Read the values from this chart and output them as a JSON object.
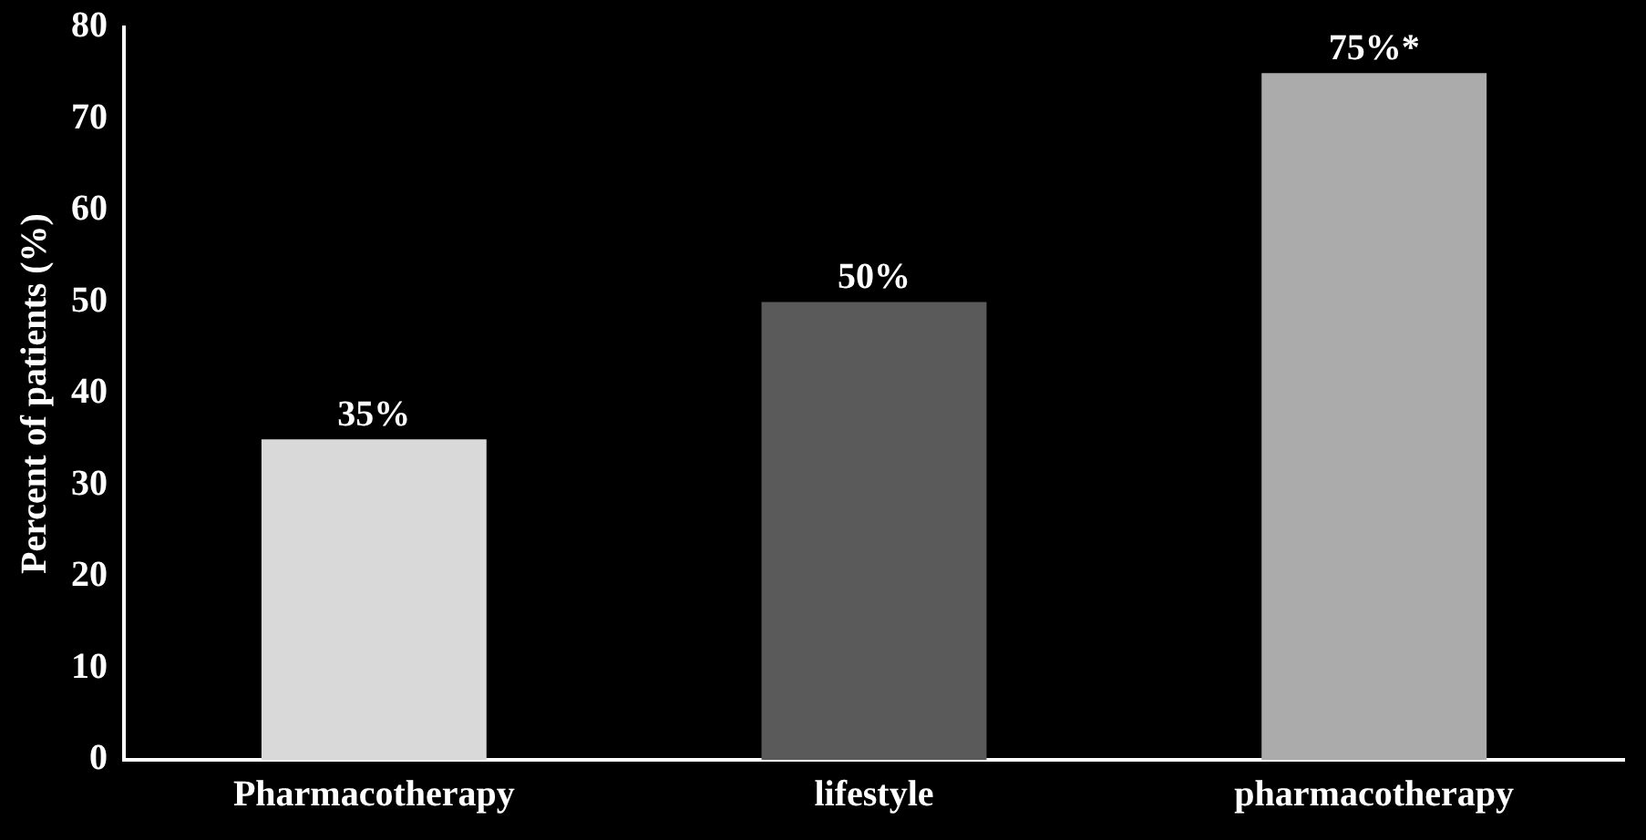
{
  "chart_data": {
    "type": "bar",
    "ylabel": "Percent of patients (%)",
    "categories": [
      "Pharmacotherapy",
      "lifestyle",
      "pharmacotherapy"
    ],
    "values": [
      35,
      50,
      75
    ],
    "colors": [
      "#d9d9d9",
      "#5a5a5a",
      "#ababab"
    ],
    "value_labels": [
      "35%",
      "50%",
      "75%*"
    ],
    "ylim": [
      0,
      80
    ],
    "yticks": [
      0,
      10,
      20,
      30,
      40,
      50,
      60,
      70,
      80
    ],
    "grid": false,
    "legend": false
  }
}
